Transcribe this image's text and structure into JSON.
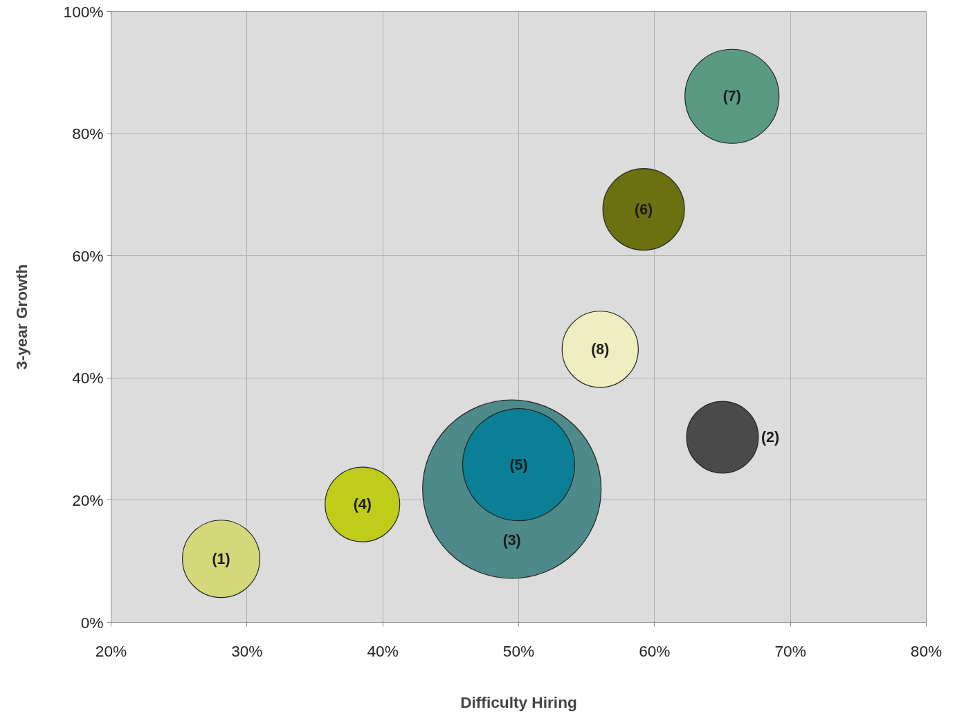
{
  "chart_data": {
    "type": "bubble",
    "xlabel": "Difficulty Hiring",
    "ylabel": "3-year Growth",
    "x": [
      28.1,
      65.0,
      49.5,
      38.5,
      50.0,
      59.2,
      65.7,
      56.0
    ],
    "values": [
      10.4,
      30.3,
      21.8,
      19.3,
      25.8,
      67.6,
      86.1,
      44.7
    ],
    "sizes": [
      0.188,
      0.162,
      1,
      0.175,
      0.394,
      0.209,
      0.278,
      0.182
    ],
    "colors": [
      "#d4d77a",
      "#4a4a4a",
      "#4e8a8a",
      "#c0cc1a",
      "#0a7f96",
      "#6b7010",
      "#5a9a82",
      "#eeeec0"
    ],
    "xlim": [
      20,
      80
    ],
    "ylim": [
      0,
      100
    ],
    "xticks": [
      {
        "value": 20,
        "label": "20%"
      },
      {
        "value": 30,
        "label": "30%"
      },
      {
        "value": 40,
        "label": "40%"
      },
      {
        "value": 50,
        "label": "50%"
      },
      {
        "value": 60,
        "label": "60%"
      },
      {
        "value": 70,
        "label": "70%"
      },
      {
        "value": 80,
        "label": "80%"
      }
    ],
    "yticks": [
      {
        "value": 0,
        "label": "0%"
      },
      {
        "value": 20,
        "label": "20%"
      },
      {
        "value": 40,
        "label": "40%"
      },
      {
        "value": 60,
        "label": "60%"
      },
      {
        "value": 80,
        "label": "80%"
      },
      {
        "value": 100,
        "label": "100%"
      }
    ],
    "grid": true,
    "annotations": [
      {
        "text": "(1)",
        "x": 28.1,
        "y": 10.4
      },
      {
        "text": "(2)",
        "x": 65.0,
        "y": 30.3
      },
      {
        "text": "(3)",
        "x": 49.5,
        "y": 21.8
      },
      {
        "text": "(4)",
        "x": 38.5,
        "y": 19.3
      },
      {
        "text": "(5)",
        "x": 50.0,
        "y": 25.8
      },
      {
        "text": "(6)",
        "x": 59.2,
        "y": 67.6
      },
      {
        "text": "(7)",
        "x": 65.7,
        "y": 86.1
      },
      {
        "text": "(8)",
        "x": 56.0,
        "y": 44.7
      }
    ]
  }
}
